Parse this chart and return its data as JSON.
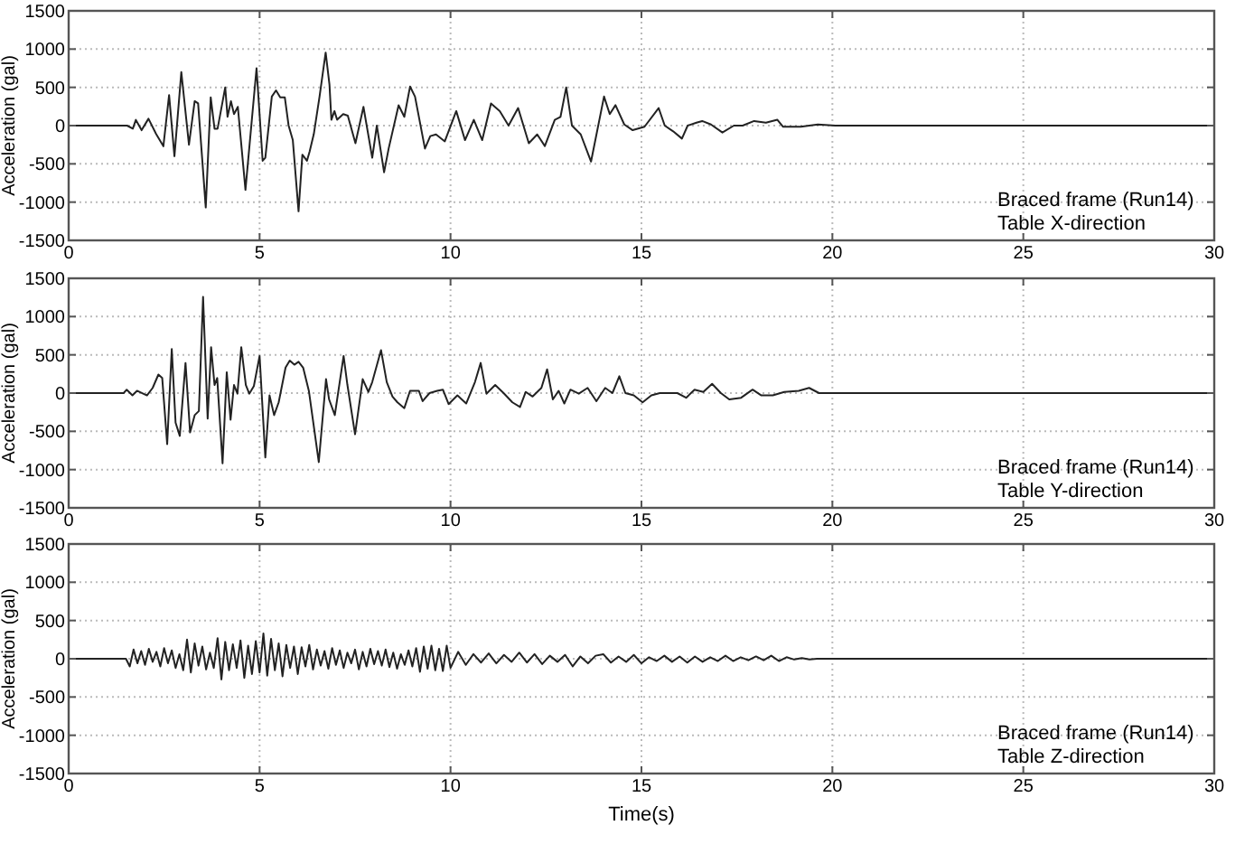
{
  "chart_data": [
    {
      "type": "line",
      "ylabel": "Acceleration (gal)",
      "xlim": [
        0,
        30
      ],
      "xticks": [
        0,
        5,
        10,
        15,
        20,
        25,
        30
      ],
      "ylim": [
        -1500,
        1500
      ],
      "yticks": [
        -1500,
        -1000,
        -500,
        0,
        500,
        1000,
        1500
      ],
      "grid": true,
      "annotations": [
        "Braced frame (Run14)",
        "Table X-direction"
      ],
      "series": [
        {
          "type": "line",
          "color": "#222222",
          "x": [
            0,
            1.53,
            1.68,
            1.76,
            1.91,
            2.09,
            2.29,
            2.48,
            2.63,
            2.77,
            2.95,
            3.15,
            3.3,
            3.39,
            3.59,
            3.72,
            3.82,
            3.9,
            4.1,
            4.16,
            4.25,
            4.33,
            4.43,
            4.63,
            4.92,
            5.08,
            5.15,
            5.32,
            5.43,
            5.54,
            5.66,
            5.76,
            5.87,
            6.02,
            6.12,
            6.24,
            6.31,
            6.42,
            6.57,
            6.73,
            6.83,
            6.88,
            6.96,
            7.03,
            7.19,
            7.31,
            7.51,
            7.72,
            7.95,
            8.07,
            8.26,
            8.38,
            8.64,
            8.79,
            8.94,
            9.07,
            9.33,
            9.47,
            9.62,
            9.85,
            10.15,
            10.38,
            10.61,
            10.83,
            11.06,
            11.29,
            11.52,
            11.77,
            12.05,
            12.27,
            12.47,
            12.73,
            12.88,
            13.03,
            13.18,
            13.41,
            13.68,
            14.02,
            14.17,
            14.32,
            14.55,
            14.77,
            15.08,
            15.45,
            15.61,
            15.83,
            16.06,
            16.21,
            16.44,
            16.59,
            16.82,
            17.12,
            17.42,
            17.65,
            17.95,
            18.26,
            18.56,
            18.71,
            19.17,
            19.62,
            20.08,
            30
          ],
          "values": [
            0,
            0,
            -40,
            75,
            -60,
            90,
            -110,
            -270,
            400,
            -400,
            700,
            -250,
            320,
            290,
            -1070,
            370,
            -40,
            -40,
            500,
            115,
            320,
            150,
            245,
            -840,
            750,
            -460,
            -420,
            380,
            460,
            370,
            370,
            0,
            -190,
            -1120,
            -380,
            -460,
            -340,
            -110,
            380,
            955,
            535,
            76,
            190,
            76,
            150,
            130,
            -230,
            245,
            -420,
            0,
            -610,
            -300,
            265,
            115,
            510,
            380,
            -300,
            -137,
            -115,
            -206,
            190,
            -190,
            76,
            -190,
            290,
            190,
            0,
            230,
            -230,
            -115,
            -267,
            76,
            115,
            500,
            0,
            -115,
            -470,
            380,
            150,
            267,
            15,
            -60,
            -15,
            230,
            0,
            -75,
            -170,
            0,
            38,
            60,
            15,
            -90,
            0,
            0,
            60,
            38,
            76,
            -15,
            -15,
            15,
            0,
            0
          ]
        }
      ]
    },
    {
      "type": "line",
      "ylabel": "Acceleration (gal)",
      "xlim": [
        0,
        30
      ],
      "xticks": [
        0,
        5,
        10,
        15,
        20,
        25,
        30
      ],
      "ylim": [
        -1500,
        1500
      ],
      "yticks": [
        -1500,
        -1000,
        -500,
        0,
        500,
        1000,
        1500
      ],
      "grid": true,
      "annotations": [
        "Braced frame (Run14)",
        "Table Y-direction"
      ],
      "series": [
        {
          "type": "line",
          "color": "#222222",
          "x": [
            0,
            1.44,
            1.52,
            1.67,
            1.79,
            2.05,
            2.2,
            2.35,
            2.45,
            2.58,
            2.7,
            2.8,
            2.91,
            3.06,
            3.18,
            3.3,
            3.41,
            3.52,
            3.64,
            3.73,
            3.82,
            3.89,
            4.03,
            4.14,
            4.24,
            4.33,
            4.42,
            4.52,
            4.64,
            4.73,
            4.85,
            5.0,
            5.15,
            5.26,
            5.38,
            5.5,
            5.68,
            5.79,
            5.91,
            6.02,
            6.14,
            6.29,
            6.55,
            6.74,
            6.82,
            6.97,
            7.2,
            7.3,
            7.5,
            7.7,
            7.85,
            7.95,
            8.18,
            8.33,
            8.48,
            8.61,
            8.79,
            8.94,
            9.17,
            9.27,
            9.45,
            9.65,
            9.8,
            9.95,
            10.18,
            10.41,
            10.64,
            10.79,
            10.94,
            11.17,
            11.39,
            11.62,
            11.82,
            11.97,
            12.15,
            12.38,
            12.53,
            12.68,
            12.83,
            12.98,
            13.14,
            13.36,
            13.59,
            13.82,
            14.05,
            14.24,
            14.42,
            14.58,
            14.8,
            15.03,
            15.26,
            15.48,
            15.94,
            16.17,
            16.39,
            16.62,
            16.85,
            17.08,
            17.3,
            17.61,
            17.91,
            18.14,
            18.44,
            18.74,
            19.12,
            19.39,
            19.65,
            20.03,
            30
          ],
          "values": [
            0,
            0,
            45,
            -30,
            30,
            -30,
            68,
            242,
            197,
            -667,
            576,
            -386,
            -560,
            394,
            -515,
            -288,
            -235,
            1258,
            -333,
            600,
            106,
            197,
            -917,
            273,
            -348,
            106,
            -8,
            600,
            106,
            -8,
            91,
            485,
            -841,
            -30,
            -288,
            -121,
            333,
            424,
            371,
            409,
            333,
            30,
            -902,
            182,
            -83,
            -288,
            485,
            106,
            -538,
            182,
            15,
            144,
            561,
            144,
            -45,
            -121,
            -197,
            30,
            30,
            -106,
            0,
            30,
            45,
            -144,
            -30,
            -136,
            144,
            394,
            -8,
            106,
            0,
            -121,
            -182,
            15,
            -45,
            68,
            311,
            -83,
            30,
            -136,
            45,
            -8,
            68,
            -106,
            68,
            0,
            220,
            0,
            -30,
            -121,
            -30,
            0,
            0,
            -61,
            45,
            15,
            121,
            0,
            -83,
            -61,
            45,
            -30,
            -30,
            15,
            30,
            68,
            0,
            0,
            0
          ]
        }
      ]
    },
    {
      "type": "line",
      "xlabel": "Time(s)",
      "ylabel": "Acceleration (gal)",
      "xlim": [
        0,
        30
      ],
      "xticks": [
        0,
        5,
        10,
        15,
        20,
        25,
        30
      ],
      "ylim": [
        -1500,
        1500
      ],
      "yticks": [
        -1500,
        -1000,
        -500,
        0,
        500,
        1000,
        1500
      ],
      "grid": true,
      "annotations": [
        "Braced frame (Run14)",
        "Table Z-direction"
      ],
      "series": [
        {
          "type": "line",
          "color": "#222222",
          "x": [
            0,
            1.5,
            1.6,
            1.7,
            1.8,
            1.9,
            2.0,
            2.1,
            2.2,
            2.3,
            2.4,
            2.5,
            2.6,
            2.7,
            2.8,
            2.9,
            3.0,
            3.1,
            3.2,
            3.3,
            3.4,
            3.5,
            3.6,
            3.7,
            3.8,
            3.9,
            4.0,
            4.1,
            4.2,
            4.3,
            4.4,
            4.5,
            4.6,
            4.7,
            4.8,
            4.9,
            5.0,
            5.1,
            5.2,
            5.3,
            5.4,
            5.5,
            5.6,
            5.7,
            5.8,
            5.9,
            6.0,
            6.1,
            6.2,
            6.3,
            6.4,
            6.5,
            6.6,
            6.7,
            6.8,
            6.9,
            7.0,
            7.1,
            7.2,
            7.3,
            7.4,
            7.5,
            7.6,
            7.7,
            7.8,
            7.9,
            8.0,
            8.1,
            8.2,
            8.3,
            8.4,
            8.5,
            8.6,
            8.7,
            8.8,
            8.9,
            9.0,
            9.1,
            9.2,
            9.3,
            9.4,
            9.5,
            9.6,
            9.7,
            9.8,
            9.9,
            10.0,
            10.2,
            10.4,
            10.6,
            10.8,
            11.0,
            11.2,
            11.4,
            11.6,
            11.8,
            12.0,
            12.2,
            12.4,
            12.6,
            12.8,
            13.0,
            13.2,
            13.4,
            13.6,
            13.8,
            14.0,
            14.2,
            14.4,
            14.6,
            14.8,
            15.0,
            15.2,
            15.4,
            15.6,
            15.8,
            16.0,
            16.2,
            16.4,
            16.6,
            16.8,
            17.0,
            17.2,
            17.4,
            17.6,
            17.8,
            18.0,
            18.2,
            18.4,
            18.6,
            18.8,
            19.0,
            19.2,
            19.4,
            19.6,
            19.8,
            20.0,
            30
          ],
          "values": [
            0,
            0,
            -100,
            120,
            -60,
            100,
            -80,
            130,
            -40,
            90,
            -100,
            140,
            -60,
            110,
            -120,
            60,
            -150,
            250,
            -180,
            200,
            -90,
            160,
            -140,
            80,
            -120,
            270,
            -270,
            220,
            -150,
            190,
            -120,
            240,
            -250,
            170,
            -200,
            230,
            -180,
            330,
            -220,
            260,
            -150,
            200,
            -230,
            180,
            -120,
            160,
            -200,
            150,
            -100,
            180,
            -140,
            120,
            -90,
            100,
            -130,
            140,
            -80,
            110,
            -120,
            80,
            -60,
            120,
            -140,
            90,
            -100,
            130,
            -70,
            100,
            -90,
            120,
            -110,
            80,
            -130,
            60,
            -80,
            110,
            -100,
            140,
            -170,
            160,
            -130,
            170,
            -150,
            130,
            -160,
            170,
            -120,
            90,
            -80,
            60,
            -50,
            70,
            -60,
            50,
            -40,
            80,
            -50,
            60,
            -70,
            40,
            -40,
            50,
            -100,
            30,
            -60,
            40,
            60,
            -50,
            30,
            -40,
            50,
            -60,
            20,
            -30,
            40,
            -40,
            30,
            -50,
            30,
            -40,
            20,
            -30,
            40,
            -30,
            20,
            -20,
            30,
            -20,
            40,
            -30,
            20,
            -10,
            10,
            -10,
            0,
            0,
            0,
            0
          ]
        }
      ]
    }
  ]
}
